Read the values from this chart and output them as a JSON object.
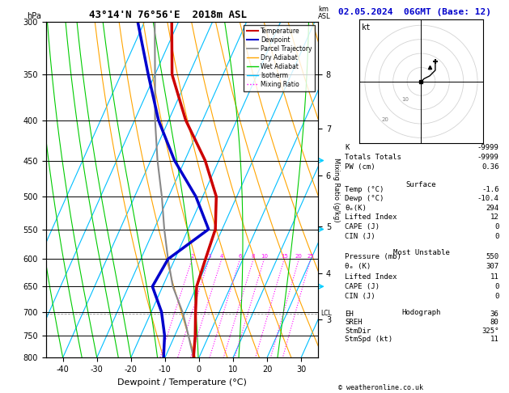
{
  "title": "43°14'N 76°56'E  2018m ASL",
  "date_title": "02.05.2024  06GMT (Base: 12)",
  "hpa_label": "hPa",
  "km_label": "km\nASL",
  "xlabel": "Dewpoint / Temperature (°C)",
  "ylabel_right": "Mixing Ratio (g/kg)",
  "pressure_levels": [
    300,
    350,
    400,
    450,
    500,
    550,
    600,
    650,
    700,
    750,
    800
  ],
  "pressure_min": 300,
  "pressure_max": 800,
  "temp_min": -45,
  "temp_max": 35,
  "background_color": "#ffffff",
  "isotherm_color": "#00bfff",
  "isotherm_lw": 0.8,
  "dry_adiabat_color": "#ffa500",
  "dry_adiabat_lw": 0.8,
  "wet_adiabat_color": "#00cc00",
  "wet_adiabat_lw": 0.8,
  "mixing_ratio_color": "#ff00ff",
  "mixing_ratio_lw": 0.8,
  "temp_color": "#cc0000",
  "temp_lw": 2.5,
  "dewp_color": "#0000cc",
  "dewp_lw": 2.5,
  "parcel_color": "#888888",
  "parcel_lw": 1.5,
  "K_index": "-9999",
  "TT_index": "-9999",
  "PW_cm": "0.36",
  "surf_temp": "-1.6",
  "surf_dewp": "-10.4",
  "surf_theta_e": "294",
  "surf_lifted_index": "12",
  "surf_CAPE": "0",
  "surf_CIN": "0",
  "mu_pressure": "550",
  "mu_theta_e": "307",
  "mu_lifted_index": "11",
  "mu_CAPE": "0",
  "mu_CIN": "0",
  "hodo_EH": "36",
  "hodo_SREH": "80",
  "hodo_StmDir": "325°",
  "hodo_StmSpd": "11",
  "LCL_pressure": 703,
  "temperature_data": {
    "pressure": [
      800,
      750,
      700,
      650,
      600,
      550,
      500,
      450,
      400,
      350,
      300
    ],
    "temp": [
      -1.6,
      -4.0,
      -7.0,
      -10.0,
      -11.0,
      -12.0,
      -16.0,
      -24.0,
      -35.0,
      -45.0,
      -52.0
    ]
  },
  "dewpoint_data": {
    "pressure": [
      800,
      750,
      700,
      650,
      600,
      550,
      500,
      450,
      400,
      350,
      300
    ],
    "dewp": [
      -10.4,
      -13.0,
      -17.0,
      -23.0,
      -22.0,
      -14.0,
      -22.0,
      -33.0,
      -43.0,
      -52.0,
      -62.0
    ]
  },
  "parcel_data": {
    "pressure": [
      800,
      750,
      703,
      650,
      600,
      550,
      500,
      450,
      400,
      350,
      300
    ],
    "temp": [
      -1.6,
      -6.0,
      -10.5,
      -17.0,
      -22.0,
      -27.0,
      -32.0,
      -38.0,
      -44.0,
      -50.0,
      -57.0
    ]
  },
  "dry_adiabats_theta": [
    280,
    290,
    300,
    310,
    320,
    330,
    340,
    350,
    360,
    370,
    380
  ],
  "wet_adiabat_T0s": [
    -20,
    -10,
    0,
    10,
    20,
    30
  ],
  "mixing_ratios": [
    2,
    3,
    4,
    6,
    8,
    10,
    15,
    20,
    25
  ],
  "km_ticks": {
    "8": 350,
    "7": 410,
    "6": 470,
    "5": 545,
    "4": 625,
    "3": 715
  },
  "copyright": "© weatheronline.co.uk"
}
